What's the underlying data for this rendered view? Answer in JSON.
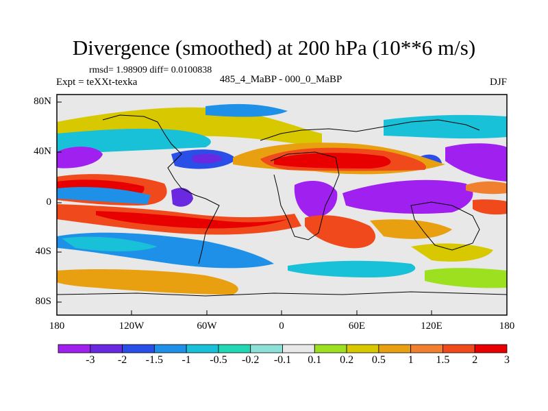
{
  "title": "Divergence (smoothed) at 200 hPa (10**6 m/s)",
  "stats": "rmsd= 1.98909 diff= 0.0100838",
  "experiment": "Expt = teXXt-texka",
  "difference": "485_4_MaBP - 000_0_MaBP",
  "season": "DJF",
  "lat_labels": [
    "80N",
    "40N",
    "0",
    "40S",
    "80S"
  ],
  "lon_labels": [
    "180",
    "120W",
    "60W",
    "0",
    "60E",
    "120E",
    "180"
  ],
  "colorbar": {
    "labels": [
      "-3",
      "-2",
      "-1.5",
      "-1",
      "-0.5",
      "-0.2",
      "-0.1",
      "0.1",
      "0.2",
      "0.5",
      "1",
      "1.5",
      "2",
      "3"
    ],
    "colors": [
      "#a020f0",
      "#6a28e0",
      "#2a4ee8",
      "#1e90e8",
      "#18c0d8",
      "#22d8b4",
      "#8ce0d8",
      "#e8e8e8",
      "#9ce020",
      "#d8c800",
      "#e8a010",
      "#f08030",
      "#f04a1c",
      "#e80000"
    ]
  },
  "colors": {
    "background": "#e8e8e8",
    "border": "#000000"
  }
}
